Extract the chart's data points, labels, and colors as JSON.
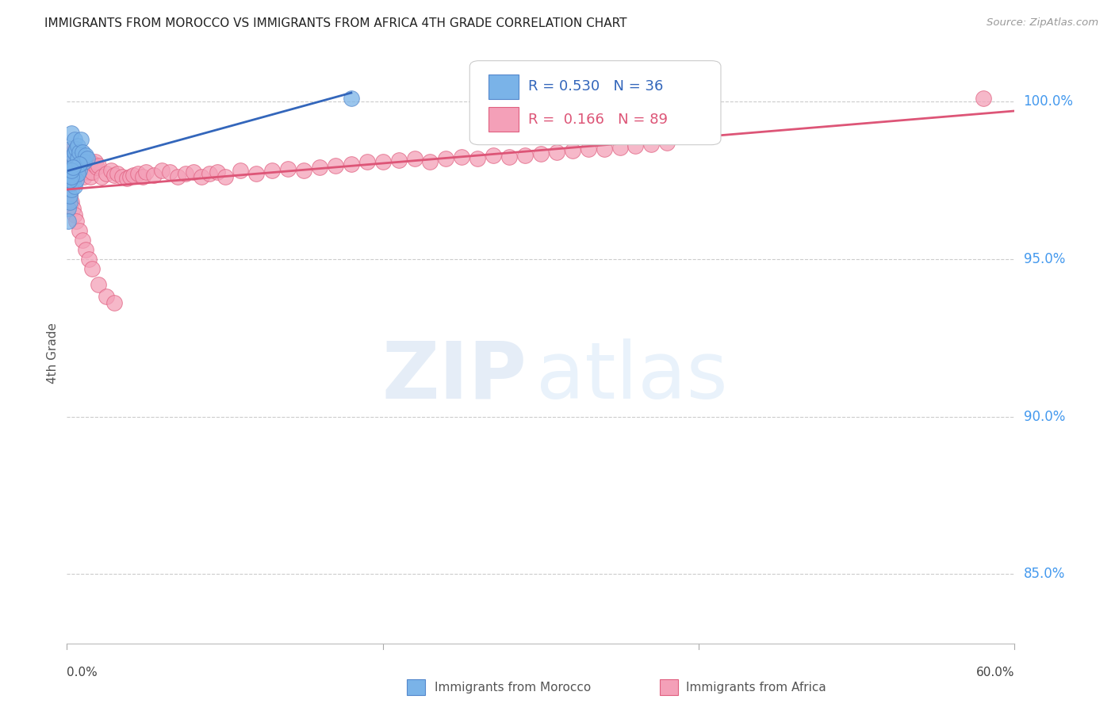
{
  "title": "IMMIGRANTS FROM MOROCCO VS IMMIGRANTS FROM AFRICA 4TH GRADE CORRELATION CHART",
  "source": "Source: ZipAtlas.com",
  "ylabel": "4th Grade",
  "xlim": [
    0.0,
    0.6
  ],
  "ylim": [
    0.828,
    1.012
  ],
  "yticks": [
    0.85,
    0.9,
    0.95,
    1.0
  ],
  "ytick_labels": [
    "85.0%",
    "90.0%",
    "95.0%",
    "100.0%"
  ],
  "legend_r_morocco": "0.530",
  "legend_n_morocco": "36",
  "legend_r_africa": "0.166",
  "legend_n_africa": "89",
  "morocco_color": "#7ab3e8",
  "morocco_edge": "#5588cc",
  "africa_color": "#f4a0b8",
  "africa_edge": "#e06080",
  "trendline_morocco_color": "#3366bb",
  "trendline_africa_color": "#dd5577",
  "background_color": "#ffffff",
  "grid_color": "#cccccc",
  "morocco_x": [
    0.001,
    0.002,
    0.002,
    0.003,
    0.003,
    0.004,
    0.004,
    0.005,
    0.005,
    0.006,
    0.006,
    0.007,
    0.007,
    0.008,
    0.008,
    0.009,
    0.01,
    0.011,
    0.012,
    0.013,
    0.001,
    0.002,
    0.002,
    0.003,
    0.003,
    0.004,
    0.005,
    0.006,
    0.007,
    0.008,
    0.002,
    0.003,
    0.003,
    0.004,
    0.18,
    0.001
  ],
  "morocco_y": [
    0.98,
    0.9755,
    0.985,
    0.979,
    0.99,
    0.983,
    0.976,
    0.984,
    0.988,
    0.979,
    0.985,
    0.982,
    0.986,
    0.978,
    0.984,
    0.988,
    0.984,
    0.981,
    0.983,
    0.982,
    0.966,
    0.968,
    0.97,
    0.972,
    0.974,
    0.976,
    0.973,
    0.975,
    0.977,
    0.98,
    0.975,
    0.976,
    0.978,
    0.979,
    1.001,
    0.962
  ],
  "africa_x": [
    0.001,
    0.002,
    0.003,
    0.003,
    0.004,
    0.005,
    0.005,
    0.006,
    0.007,
    0.008,
    0.008,
    0.009,
    0.01,
    0.01,
    0.011,
    0.012,
    0.013,
    0.014,
    0.015,
    0.015,
    0.016,
    0.017,
    0.018,
    0.019,
    0.02,
    0.022,
    0.025,
    0.028,
    0.03,
    0.032,
    0.035,
    0.038,
    0.04,
    0.042,
    0.045,
    0.048,
    0.05,
    0.055,
    0.06,
    0.065,
    0.07,
    0.075,
    0.08,
    0.085,
    0.09,
    0.095,
    0.1,
    0.11,
    0.12,
    0.13,
    0.14,
    0.15,
    0.16,
    0.17,
    0.18,
    0.19,
    0.2,
    0.21,
    0.22,
    0.23,
    0.24,
    0.25,
    0.26,
    0.27,
    0.28,
    0.29,
    0.3,
    0.31,
    0.32,
    0.33,
    0.34,
    0.35,
    0.36,
    0.37,
    0.38,
    0.002,
    0.003,
    0.004,
    0.005,
    0.006,
    0.008,
    0.01,
    0.012,
    0.014,
    0.016,
    0.02,
    0.025,
    0.03,
    0.58
  ],
  "africa_y": [
    0.981,
    0.9845,
    0.9755,
    0.9795,
    0.984,
    0.98,
    0.977,
    0.9835,
    0.98,
    0.979,
    0.984,
    0.977,
    0.981,
    0.9785,
    0.976,
    0.982,
    0.979,
    0.9775,
    0.976,
    0.981,
    0.9775,
    0.98,
    0.981,
    0.979,
    0.9795,
    0.976,
    0.977,
    0.978,
    0.9765,
    0.977,
    0.976,
    0.9755,
    0.976,
    0.9765,
    0.977,
    0.976,
    0.9775,
    0.9765,
    0.978,
    0.9775,
    0.976,
    0.977,
    0.9775,
    0.976,
    0.977,
    0.9775,
    0.976,
    0.978,
    0.977,
    0.978,
    0.9785,
    0.978,
    0.979,
    0.9795,
    0.98,
    0.981,
    0.981,
    0.9815,
    0.982,
    0.981,
    0.982,
    0.9825,
    0.982,
    0.983,
    0.9825,
    0.983,
    0.9835,
    0.984,
    0.9845,
    0.985,
    0.985,
    0.9855,
    0.986,
    0.9865,
    0.987,
    0.97,
    0.968,
    0.966,
    0.964,
    0.962,
    0.959,
    0.956,
    0.953,
    0.95,
    0.947,
    0.942,
    0.938,
    0.936,
    1.001
  ]
}
